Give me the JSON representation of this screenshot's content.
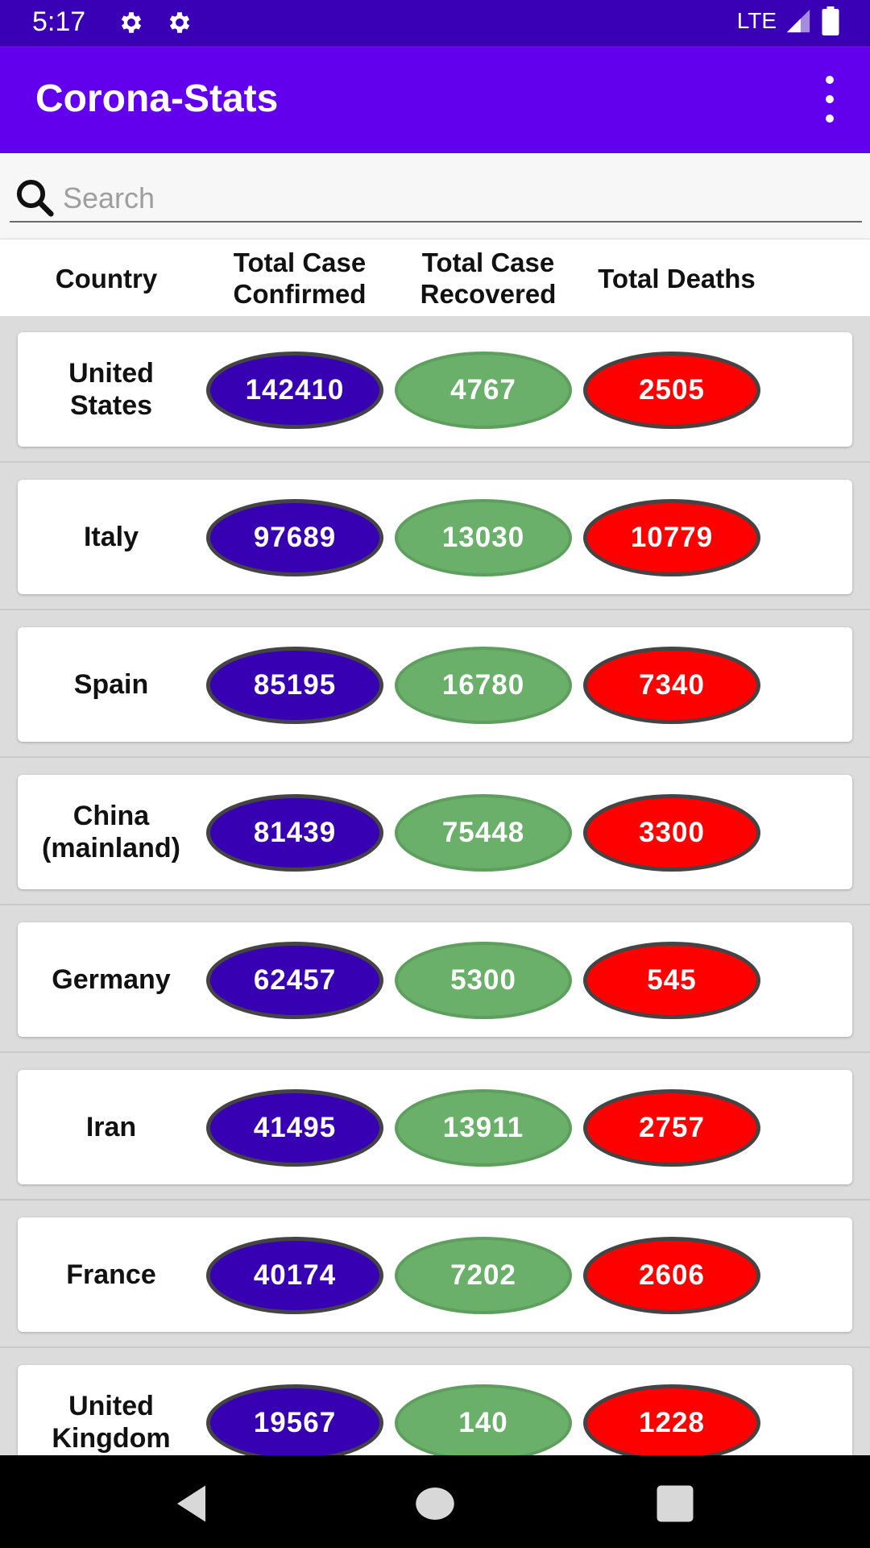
{
  "status_bar": {
    "time": "5:17",
    "network": "LTE",
    "icons": [
      "gear-icon",
      "gear-icon",
      "signal-icon",
      "battery-icon"
    ]
  },
  "app_bar": {
    "title": "Corona-Stats",
    "menu_icon": "more-vert-icon"
  },
  "search": {
    "placeholder": "Search",
    "value": "",
    "icon": "search-icon"
  },
  "table": {
    "headers": {
      "country": "Country",
      "confirmed_1": "Total Case",
      "confirmed_2": "Confirmed",
      "recovered_1": "Total Case",
      "recovered_2": "Recovered",
      "deaths": "Total Deaths"
    },
    "rows": [
      {
        "country_1": "United",
        "country_2": "States",
        "confirmed": "142410",
        "recovered": "4767",
        "deaths": "2505"
      },
      {
        "country_1": "Italy",
        "country_2": "",
        "confirmed": "97689",
        "recovered": "13030",
        "deaths": "10779"
      },
      {
        "country_1": "Spain",
        "country_2": "",
        "confirmed": "85195",
        "recovered": "16780",
        "deaths": "7340"
      },
      {
        "country_1": "China",
        "country_2": "(mainland)",
        "confirmed": "81439",
        "recovered": "75448",
        "deaths": "3300"
      },
      {
        "country_1": "Germany",
        "country_2": "",
        "confirmed": "62457",
        "recovered": "5300",
        "deaths": "545"
      },
      {
        "country_1": "Iran",
        "country_2": "",
        "confirmed": "41495",
        "recovered": "13911",
        "deaths": "2757"
      },
      {
        "country_1": "France",
        "country_2": "",
        "confirmed": "40174",
        "recovered": "7202",
        "deaths": "2606"
      },
      {
        "country_1": "United",
        "country_2": "Kingdom",
        "confirmed": "19567",
        "recovered": "140",
        "deaths": "1228"
      }
    ]
  },
  "colors": {
    "status_bar": "#3a00b5",
    "app_bar": "#6200ee",
    "confirmed": "#3700b3",
    "recovered": "#6aaf6a",
    "deaths": "#ff0000"
  },
  "nav_bar": {
    "icons": [
      "back-icon",
      "home-icon",
      "recents-icon"
    ]
  }
}
